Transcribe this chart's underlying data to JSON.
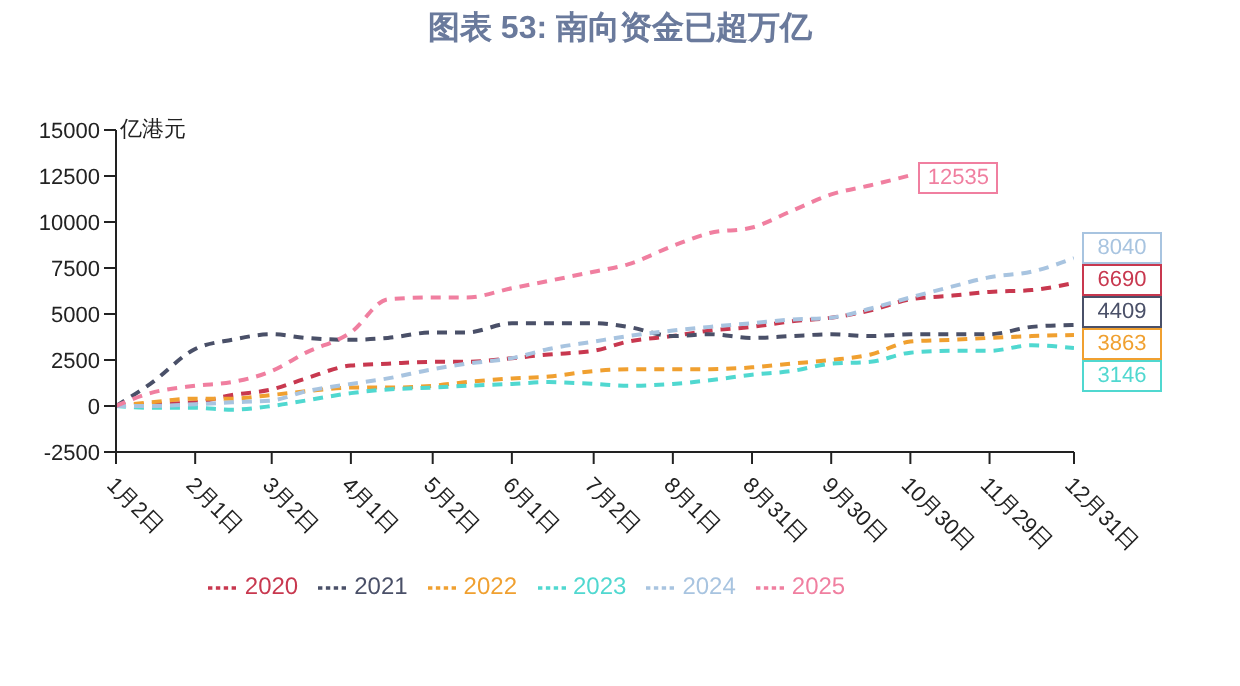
{
  "chart_data": {
    "type": "line",
    "title": "图表 53: 南向资金已超万亿",
    "ylabel": "亿港元",
    "x": [
      "--01-02",
      "--01-15",
      "--02-01",
      "--02-15",
      "--03-02",
      "--03-15",
      "--04-01",
      "--04-15",
      "--05-02",
      "--05-15",
      "--06-01",
      "--06-15",
      "--07-02",
      "--07-15",
      "--08-01",
      "--08-15",
      "--08-31",
      "--09-15",
      "--09-30",
      "--10-15",
      "--10-30",
      "--11-15",
      "--11-29",
      "--12-15",
      "--12-31"
    ],
    "series": [
      {
        "name": "2020",
        "color": "#c8384f",
        "values": [
          0,
          100,
          200,
          600,
          900,
          1500,
          2200,
          2300,
          2400,
          2400,
          2600,
          2800,
          3000,
          3500,
          3800,
          4100,
          4300,
          4600,
          4800,
          5200,
          5800,
          6000,
          6200,
          6300,
          6690
        ],
        "value_labels": [
          null,
          null,
          null,
          null,
          null,
          null,
          null,
          null,
          null,
          null,
          null,
          null,
          null,
          null,
          null,
          null,
          null,
          null,
          null,
          null,
          null,
          null,
          null,
          null,
          "6690"
        ]
      },
      {
        "name": "2021",
        "color": "#4a5068",
        "values": [
          0,
          1200,
          3100,
          3600,
          3900,
          3700,
          3600,
          3700,
          4000,
          4000,
          4500,
          4500,
          4500,
          4300,
          3800,
          3900,
          3700,
          3800,
          3900,
          3800,
          3900,
          3900,
          3900,
          4300,
          4409
        ],
        "value_labels": [
          null,
          null,
          null,
          null,
          null,
          null,
          null,
          null,
          null,
          null,
          null,
          null,
          null,
          null,
          null,
          null,
          null,
          null,
          null,
          null,
          null,
          null,
          null,
          null,
          "4409"
        ]
      },
      {
        "name": "2022",
        "color": "#f0a030",
        "values": [
          0,
          200,
          400,
          400,
          600,
          800,
          1000,
          1000,
          1100,
          1300,
          1500,
          1600,
          1900,
          2000,
          2000,
          2000,
          2100,
          2300,
          2500,
          2800,
          3500,
          3600,
          3700,
          3800,
          3863
        ],
        "value_labels": [
          null,
          null,
          null,
          null,
          null,
          null,
          null,
          null,
          null,
          null,
          null,
          null,
          null,
          null,
          null,
          null,
          null,
          null,
          null,
          null,
          null,
          null,
          null,
          null,
          "3863"
        ]
      },
      {
        "name": "2023",
        "color": "#50d8d0",
        "values": [
          0,
          -100,
          -100,
          -200,
          0,
          300,
          700,
          900,
          1000,
          1100,
          1200,
          1300,
          1200,
          1100,
          1200,
          1400,
          1700,
          1900,
          2300,
          2400,
          2900,
          3000,
          3000,
          3300,
          3146
        ],
        "value_labels": [
          null,
          null,
          null,
          null,
          null,
          null,
          null,
          null,
          null,
          null,
          null,
          null,
          null,
          null,
          null,
          null,
          null,
          null,
          null,
          null,
          null,
          null,
          null,
          null,
          "3146"
        ]
      },
      {
        "name": "2024",
        "color": "#a8c4e0",
        "values": [
          0,
          0,
          100,
          200,
          300,
          800,
          1200,
          1500,
          2000,
          2300,
          2600,
          3100,
          3500,
          3800,
          4100,
          4300,
          4500,
          4700,
          4800,
          5300,
          5900,
          6500,
          7000,
          7300,
          8040
        ],
        "value_labels": [
          null,
          null,
          null,
          null,
          null,
          null,
          null,
          null,
          null,
          null,
          null,
          null,
          null,
          null,
          null,
          null,
          null,
          null,
          null,
          null,
          null,
          null,
          null,
          null,
          "8040"
        ]
      },
      {
        "name": "2025",
        "color": "#f07fa0",
        "values": [
          0,
          700,
          1100,
          1300,
          1900,
          2900,
          4000,
          5800,
          5900,
          5900,
          6400,
          6800,
          7300,
          7700,
          8700,
          9400,
          9700,
          10600,
          11500,
          12000,
          12535,
          null,
          null,
          null,
          null
        ],
        "value_labels": [
          null,
          null,
          null,
          null,
          null,
          null,
          null,
          null,
          null,
          null,
          null,
          null,
          null,
          null,
          null,
          null,
          null,
          null,
          null,
          null,
          "12535",
          null,
          null,
          null,
          null
        ]
      }
    ],
    "ylim": [
      -2500,
      15000
    ],
    "yticks": [
      -2500,
      0,
      2500,
      5000,
      7500,
      10000,
      12500,
      15000
    ],
    "xlim": [
      "--01-02",
      "--12-31"
    ],
    "xticks": [
      {
        "value": "--01-02",
        "label": "1月2日"
      },
      {
        "value": "--02-01",
        "label": "2月1日"
      },
      {
        "value": "--03-02",
        "label": "3月2日"
      },
      {
        "value": "--04-01",
        "label": "4月1日"
      },
      {
        "value": "--05-02",
        "label": "5月2日"
      },
      {
        "value": "--06-01",
        "label": "6月1日"
      },
      {
        "value": "--07-02",
        "label": "7月2日"
      },
      {
        "value": "--08-01",
        "label": "8月1日"
      },
      {
        "value": "--08-31",
        "label": "8月31日"
      },
      {
        "value": "--09-30",
        "label": "9月30日"
      },
      {
        "value": "--10-30",
        "label": "10月30日"
      },
      {
        "value": "--11-29",
        "label": "11月29日"
      },
      {
        "value": "--12-31",
        "label": "12月31日"
      }
    ],
    "grid": false,
    "legend": "bottom",
    "marker": "none",
    "line_style": "dashed"
  }
}
